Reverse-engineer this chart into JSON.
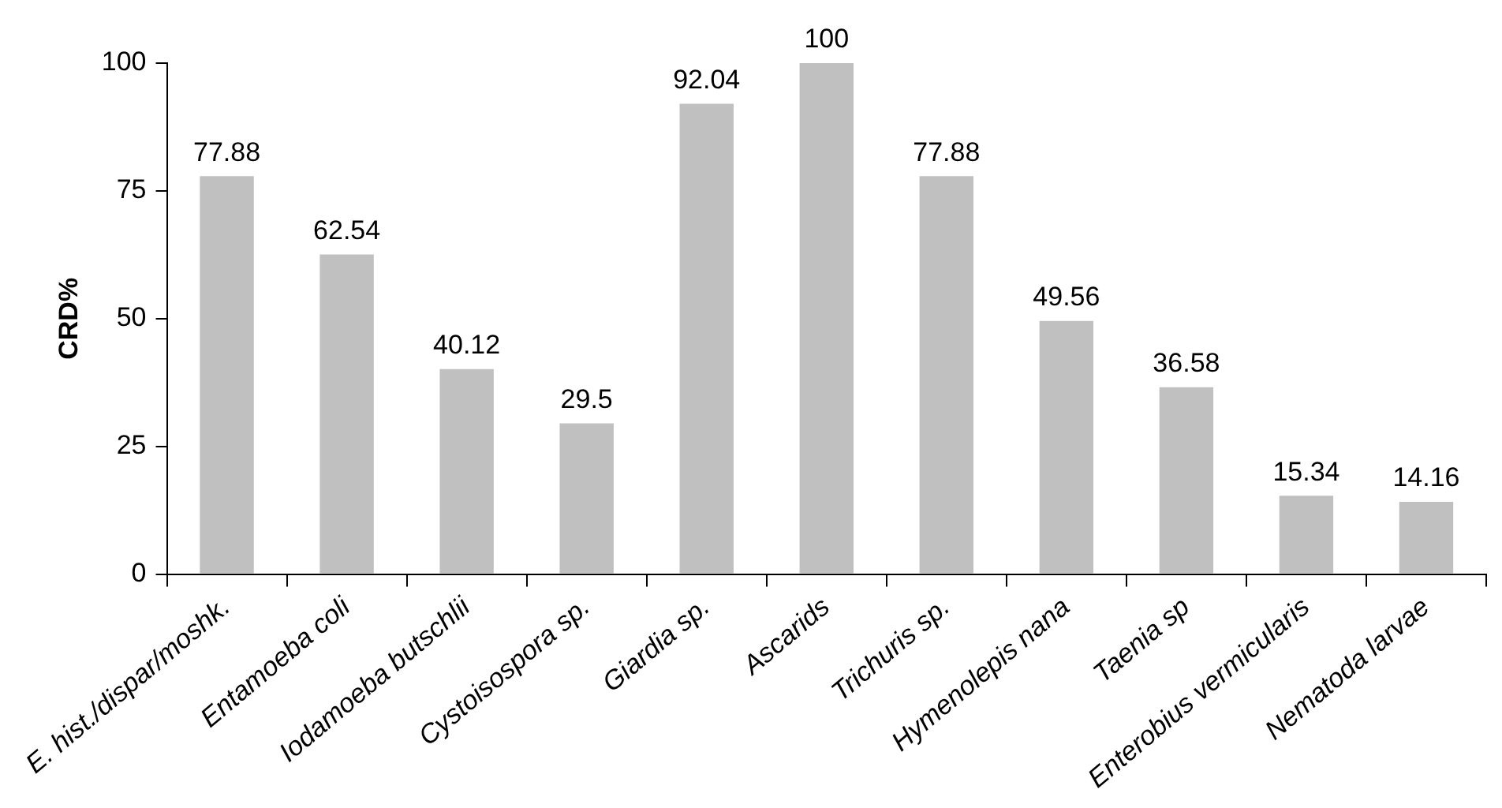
{
  "chart_data": {
    "type": "bar",
    "ylabel": "CRD%",
    "categories": [
      "E. hist./dispar/moshk.",
      "Entamoeba coli",
      "Iodamoeba butschlii",
      "Cystoisospora sp.",
      "Giardia sp.",
      "Ascarids",
      "Trichuris sp.",
      "Hymenolepis nana",
      "Taenia sp",
      "Enterobius vermicularis",
      "Nematoda larvae"
    ],
    "values": [
      77.88,
      62.54,
      40.12,
      29.5,
      92.04,
      100,
      77.88,
      49.56,
      36.58,
      15.34,
      14.16
    ],
    "color": "#c0c0c0",
    "ylim": [
      0,
      100
    ],
    "yticks": [
      0,
      25,
      50,
      75,
      100
    ],
    "data_labels": true,
    "legend": false
  }
}
